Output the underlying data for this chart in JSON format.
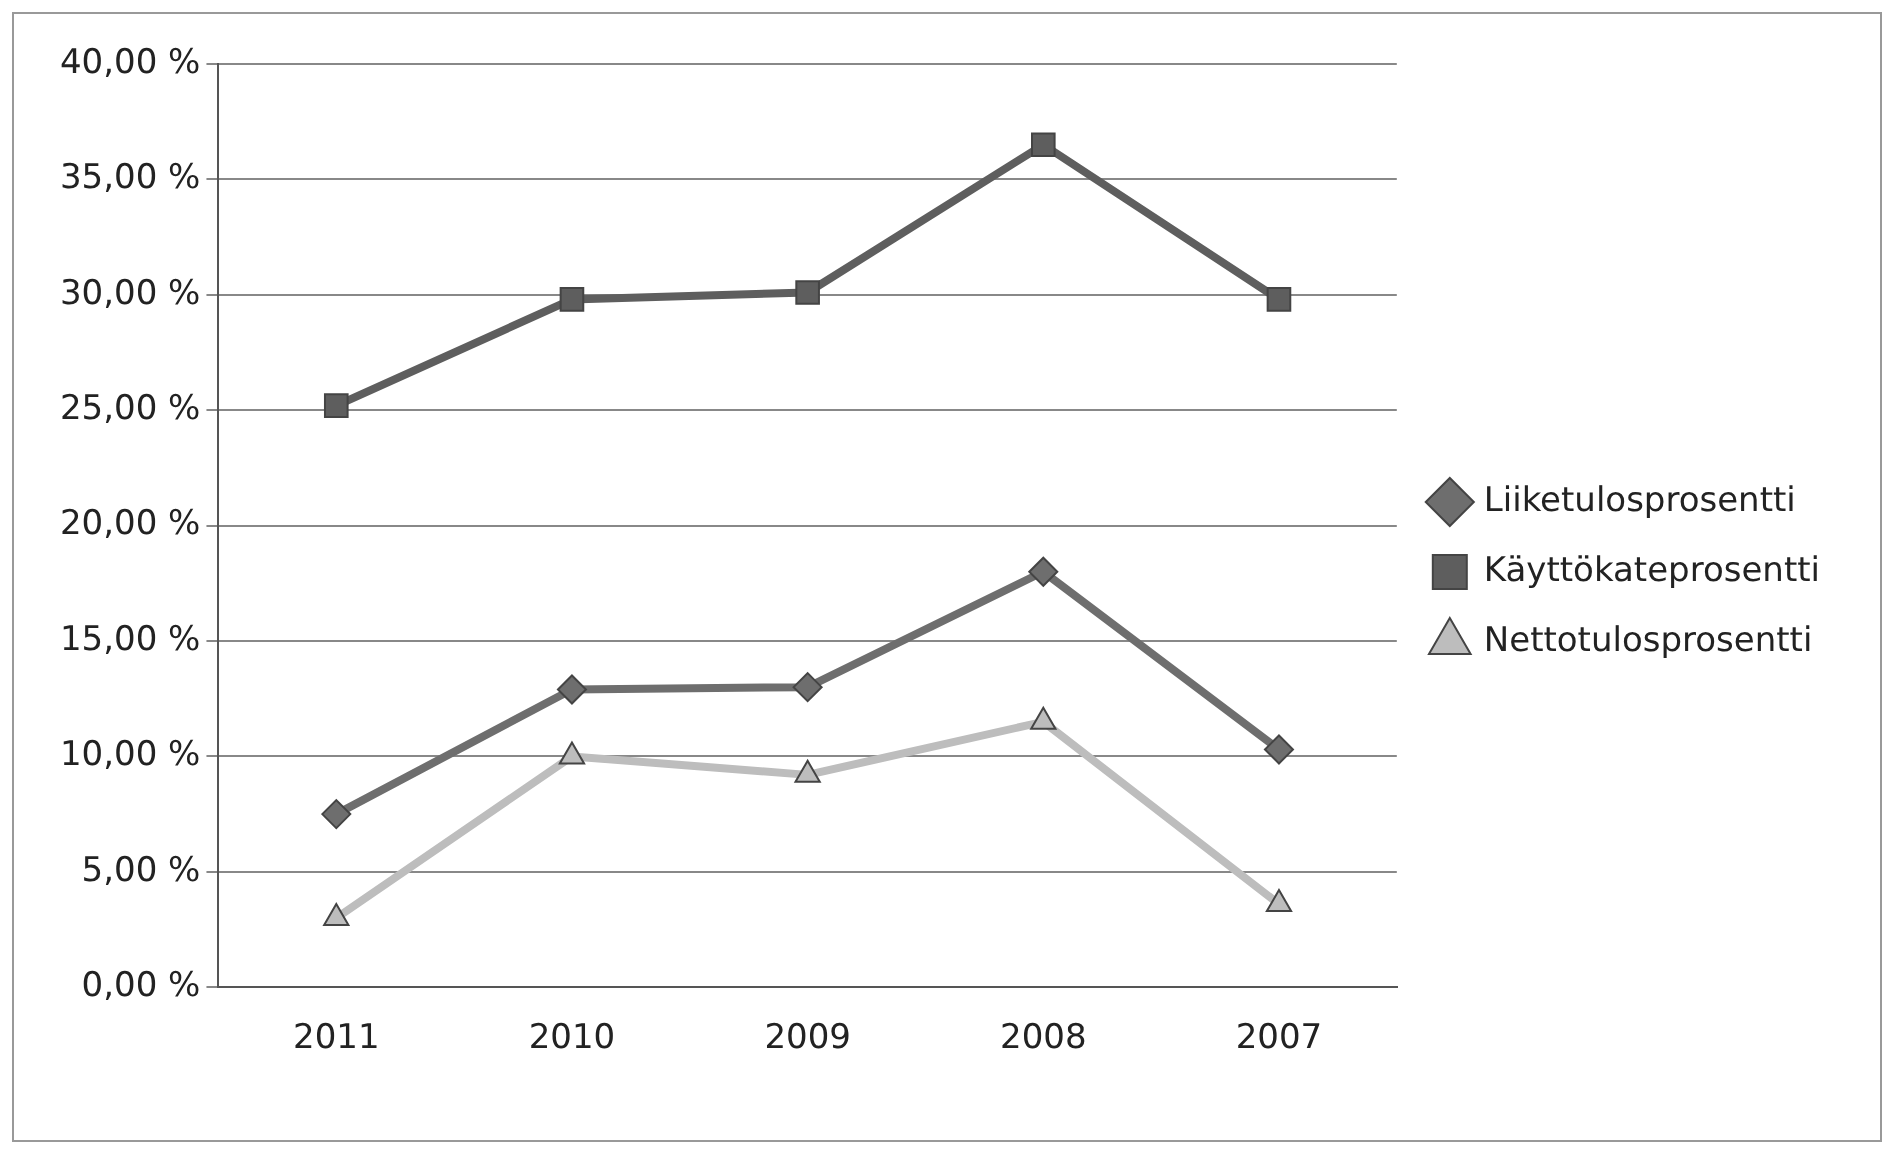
{
  "chart_data": {
    "type": "line",
    "categories": [
      "2011",
      "2010",
      "2009",
      "2008",
      "2007"
    ],
    "series": [
      {
        "name": "Liiketulosprosentti",
        "color": "#6e6e6e",
        "marker": "diamond",
        "values": [
          7.5,
          12.9,
          13.0,
          18.0,
          10.3
        ]
      },
      {
        "name": "Käyttökateprosentti",
        "color": "#5e5e5e",
        "marker": "square",
        "values": [
          25.2,
          29.8,
          30.1,
          36.5,
          29.8
        ]
      },
      {
        "name": "Nettotulosprosentti",
        "color": "#bdbdbd",
        "marker": "triangle",
        "values": [
          3.0,
          10.0,
          9.2,
          11.5,
          3.6
        ]
      }
    ],
    "ylim": [
      0,
      40
    ],
    "yticks": [
      {
        "value": 0,
        "label": "0,00 %"
      },
      {
        "value": 5,
        "label": "5,00 %"
      },
      {
        "value": 10,
        "label": "10,00 %"
      },
      {
        "value": 15,
        "label": "15,00 %"
      },
      {
        "value": 20,
        "label": "20,00 %"
      },
      {
        "value": 25,
        "label": "25,00 %"
      },
      {
        "value": 30,
        "label": "30,00 %"
      },
      {
        "value": 35,
        "label": "35,00 %"
      },
      {
        "value": 40,
        "label": "40,00 %"
      }
    ],
    "grid": "y",
    "legend": "right"
  }
}
